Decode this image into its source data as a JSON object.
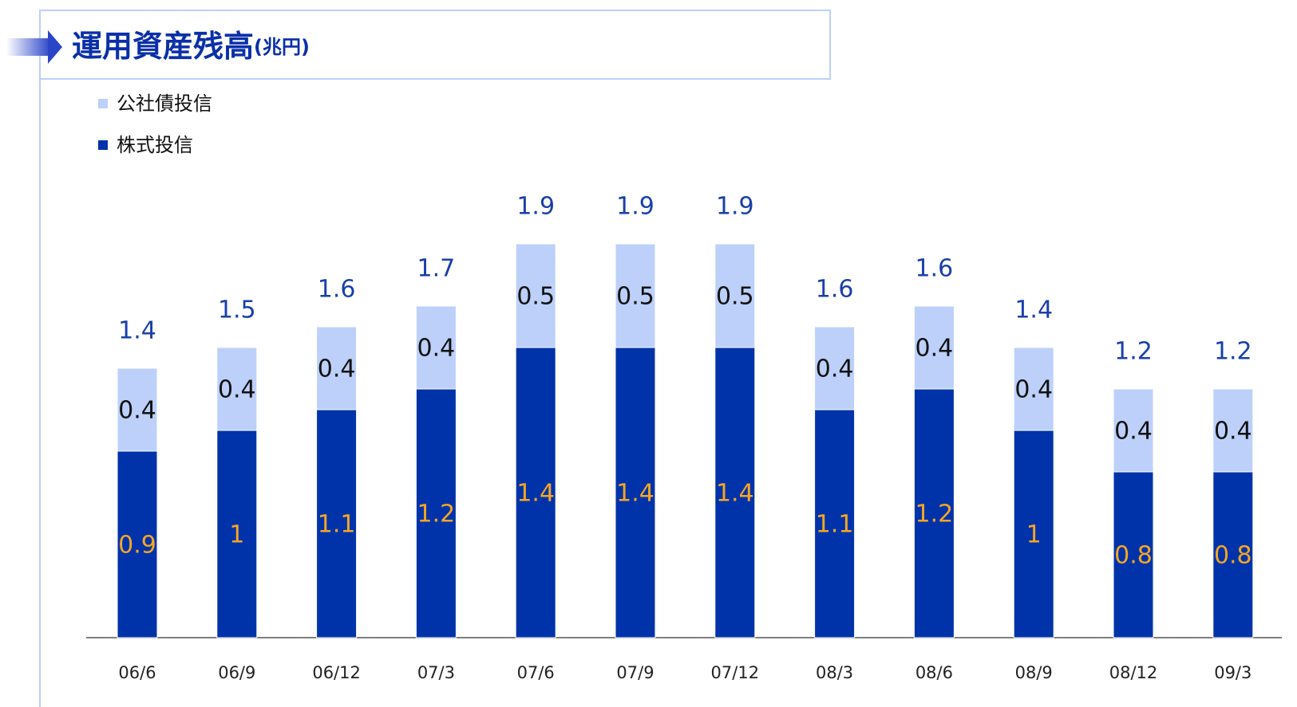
{
  "chart_data": {
    "type": "stacked_bar",
    "title": "運用資産残高",
    "unit_label": "(兆円)",
    "categories": [
      "06/6",
      "06/9",
      "06/12",
      "07/3",
      "07/6",
      "07/9",
      "07/12",
      "08/3",
      "08/6",
      "08/9",
      "08/12",
      "09/3"
    ],
    "series": [
      {
        "name": "株式投信",
        "color": "#0033aa",
        "label_color": "#f5a623",
        "values": [
          0.9,
          1.0,
          1.1,
          1.2,
          1.4,
          1.4,
          1.4,
          1.1,
          1.2,
          1.0,
          0.8,
          0.8
        ]
      },
      {
        "name": "公社債投信",
        "color": "#bcd0fa",
        "label_color": "#111111",
        "values": [
          0.4,
          0.4,
          0.4,
          0.4,
          0.5,
          0.5,
          0.5,
          0.4,
          0.4,
          0.4,
          0.4,
          0.4
        ]
      }
    ],
    "totals": [
      1.4,
      1.5,
      1.6,
      1.7,
      1.9,
      1.9,
      1.9,
      1.6,
      1.6,
      1.4,
      1.2,
      1.2
    ],
    "totals_color": "#1a3faa"
  }
}
